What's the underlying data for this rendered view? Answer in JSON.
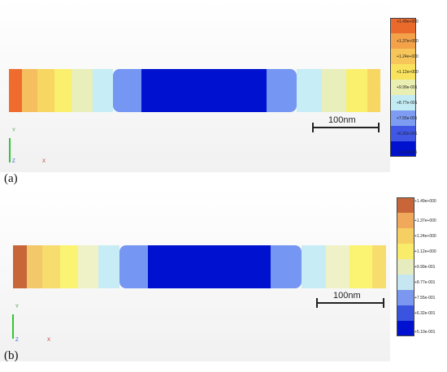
{
  "panels": [
    {
      "label": "(a)",
      "scale_label": "100nm",
      "axes": {
        "y": "Y",
        "z": "Z",
        "x": "X"
      },
      "legend": {
        "labels": [
          "+1.49e+000",
          "+1.37e+000",
          "+1.24e+000",
          "+1.12e+000",
          "+9.99e-001",
          "+8.77e-001",
          "+7.55e-001",
          "+6.32e-001",
          "+5.10e-001"
        ],
        "colors": [
          "#ea6a2c",
          "#f4a24a",
          "#f7c65b",
          "#f9e35e",
          "#e9efb2",
          "#c3ebf4",
          "#7d9cf2",
          "#3f57e4",
          "#0011cf"
        ]
      },
      "segments": [
        {
          "color": "#ef6b2e",
          "share": 3.5
        },
        {
          "color": "#f5bf5f",
          "share": 4
        },
        {
          "color": "#f7d762",
          "share": 4.5
        },
        {
          "color": "#fbf06d",
          "share": 4.5
        },
        {
          "color": "#e8efbb",
          "share": 5.5
        },
        {
          "color": "#c7edf6",
          "share": 5.5
        },
        {
          "color": "#7596f2",
          "share": 7.5
        },
        {
          "color": "#0012cf",
          "share": 33
        },
        {
          "color": "#7596f2",
          "share": 8
        },
        {
          "color": "#c7edf6",
          "share": 6.5
        },
        {
          "color": "#e8efbb",
          "share": 6.5
        },
        {
          "color": "#fbf06d",
          "share": 5.5
        },
        {
          "color": "#f7d762",
          "share": 3.5
        }
      ]
    },
    {
      "label": "(b)",
      "scale_label": "100nm",
      "axes": {
        "y": "Y",
        "z": "Z",
        "x": "X"
      },
      "legend": {
        "labels": [
          "+1.49e+000",
          "+1.37e+000",
          "+1.24e+000",
          "+1.12e+000",
          "+9.99e-001",
          "+8.77e-001",
          "+7.55e-001",
          "+6.32e-001",
          "+5.10e-001"
        ],
        "colors": [
          "#c8663a",
          "#f0a85a",
          "#f6cf62",
          "#f9ec6b",
          "#e6ecbd",
          "#c6e7f1",
          "#7c97ef",
          "#3b54e0",
          "#0011cf"
        ]
      },
      "segments": [
        {
          "color": "#c8663a",
          "share": 3.8
        },
        {
          "color": "#f3c86a",
          "share": 4
        },
        {
          "color": "#f7dd6e",
          "share": 4.8
        },
        {
          "color": "#fbf372",
          "share": 4.8
        },
        {
          "color": "#eef2c6",
          "share": 5.5
        },
        {
          "color": "#c8ecf6",
          "share": 5.8
        },
        {
          "color": "#7596f2",
          "share": 7.5
        },
        {
          "color": "#0012cf",
          "share": 33
        },
        {
          "color": "#7596f2",
          "share": 8.4
        },
        {
          "color": "#c8ecf6",
          "share": 6.4
        },
        {
          "color": "#eef2c6",
          "share": 6.4
        },
        {
          "color": "#fbf372",
          "share": 6.2
        },
        {
          "color": "#f7dd6e",
          "share": 3.6
        }
      ]
    }
  ]
}
